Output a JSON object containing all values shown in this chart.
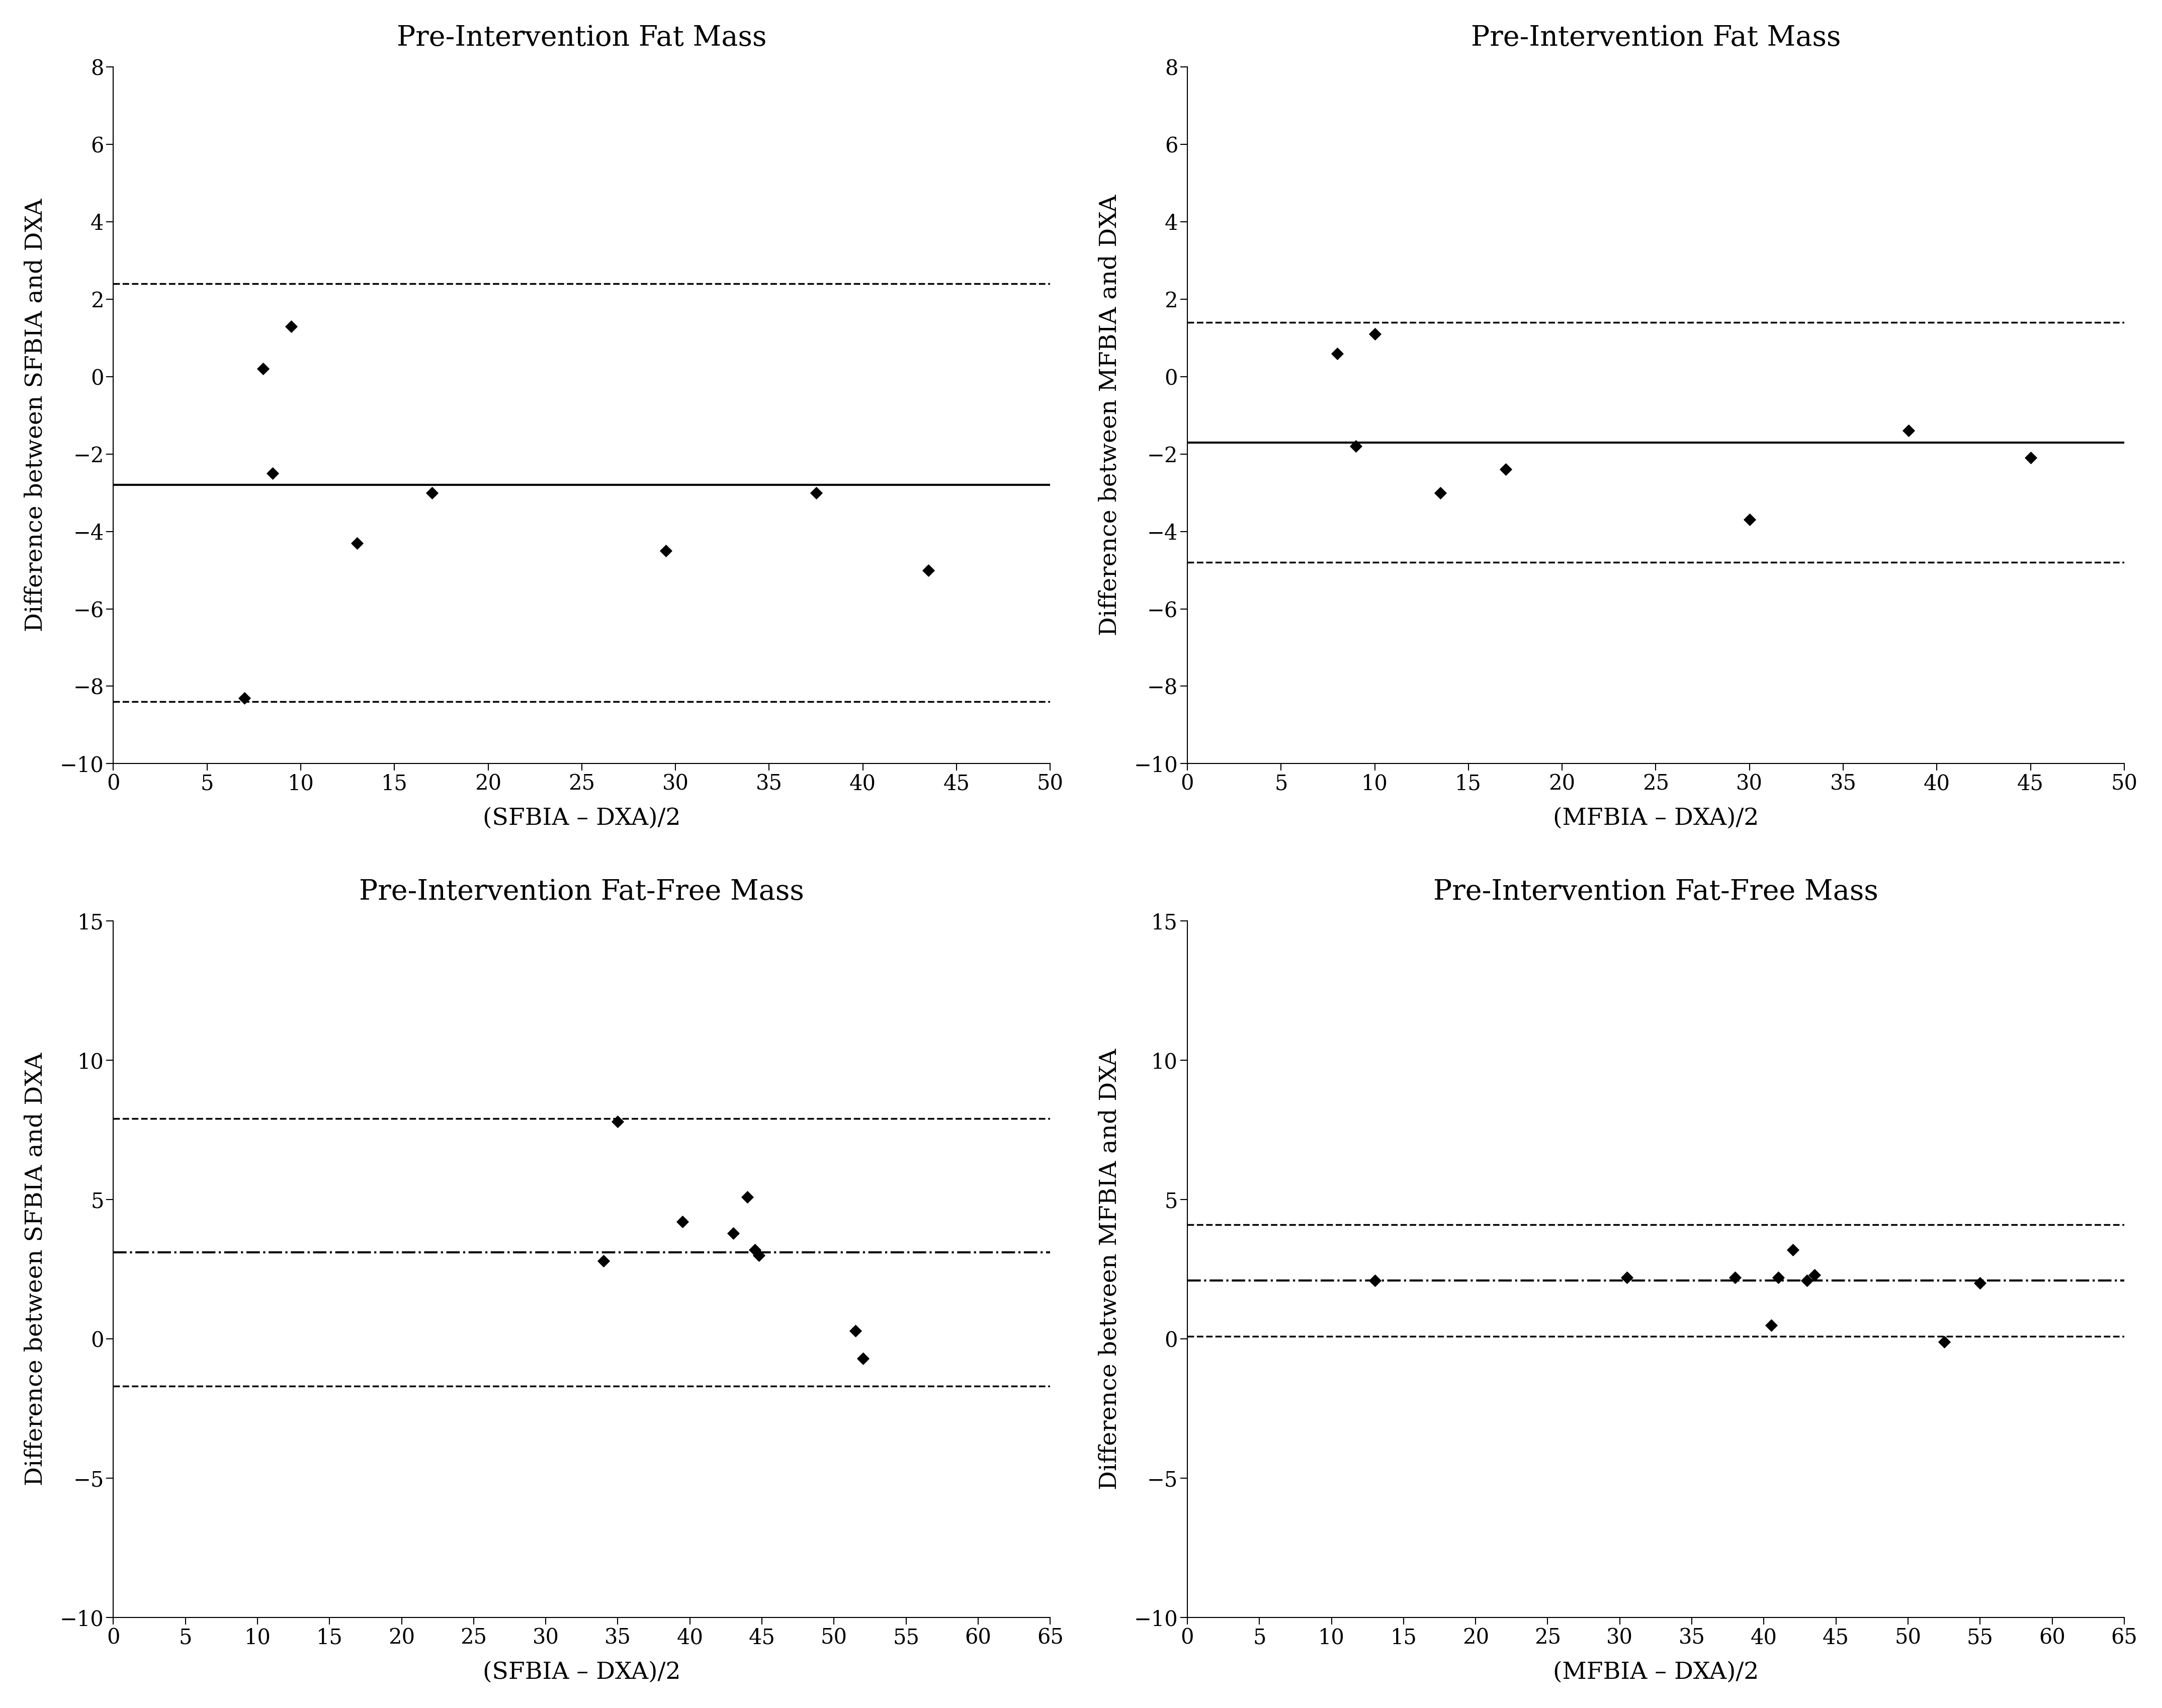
{
  "plots": [
    {
      "title": "Pre-Intervention Fat Mass",
      "xlabel": "(SFBIA – DXA)/2",
      "ylabel": "Difference between SFBIA and DXA",
      "xlim": [
        0,
        50
      ],
      "ylim": [
        -10,
        8
      ],
      "yticks": [
        -10,
        -8,
        -6,
        -4,
        -2,
        0,
        2,
        4,
        6,
        8
      ],
      "xticks": [
        0,
        5,
        10,
        15,
        20,
        25,
        30,
        35,
        40,
        45,
        50
      ],
      "data_x": [
        7.0,
        8.0,
        8.5,
        9.5,
        13.0,
        17.0,
        29.5,
        37.5,
        43.5
      ],
      "data_y": [
        -8.3,
        0.2,
        -2.5,
        1.3,
        -4.3,
        -3.0,
        -4.5,
        -3.0,
        -5.0
      ],
      "mean_y": -2.8,
      "upper_loa": 2.4,
      "lower_loa": -8.4,
      "mean_linestyle": "solid",
      "loa_linestyle": "dashed"
    },
    {
      "title": "Pre-Intervention Fat Mass",
      "xlabel": "(MFBIA – DXA)/2",
      "ylabel": "Difference between MFBIA and DXA",
      "xlim": [
        0,
        50
      ],
      "ylim": [
        -10,
        8
      ],
      "yticks": [
        -10,
        -8,
        -6,
        -4,
        -2,
        0,
        2,
        4,
        6,
        8
      ],
      "xticks": [
        0,
        5,
        10,
        15,
        20,
        25,
        30,
        35,
        40,
        45,
        50
      ],
      "data_x": [
        8.0,
        9.0,
        10.0,
        13.5,
        17.0,
        30.0,
        38.5,
        45.0
      ],
      "data_y": [
        0.6,
        -1.8,
        1.1,
        -3.0,
        -2.4,
        -3.7,
        -1.4,
        -2.1
      ],
      "mean_y": -1.7,
      "upper_loa": 1.4,
      "lower_loa": -4.8,
      "mean_linestyle": "solid",
      "loa_linestyle": "dashed"
    },
    {
      "title": "Pre-Intervention Fat-Free Mass",
      "xlabel": "(SFBIA – DXA)/2",
      "ylabel": "Difference between SFBIA and DXA",
      "xlim": [
        0,
        65
      ],
      "ylim": [
        -10,
        15
      ],
      "yticks": [
        -10,
        -5,
        0,
        5,
        10,
        15
      ],
      "xticks": [
        0,
        5,
        10,
        15,
        20,
        25,
        30,
        35,
        40,
        45,
        50,
        55,
        60,
        65
      ],
      "data_x": [
        34.0,
        35.0,
        39.5,
        43.0,
        44.0,
        44.5,
        44.8,
        51.5,
        52.0
      ],
      "data_y": [
        2.8,
        7.8,
        4.2,
        3.8,
        5.1,
        3.2,
        3.0,
        0.3,
        -0.7
      ],
      "mean_y": 3.1,
      "upper_loa": 7.9,
      "lower_loa": -1.7,
      "mean_linestyle": "dashdot",
      "loa_linestyle": "dashed"
    },
    {
      "title": "Pre-Intervention Fat-Free Mass",
      "xlabel": "(MFBIA – DXA)/2",
      "ylabel": "Difference between MFBIA and DXA",
      "xlim": [
        0,
        65
      ],
      "ylim": [
        -10,
        15
      ],
      "yticks": [
        -10,
        -5,
        0,
        5,
        10,
        15
      ],
      "xticks": [
        0,
        5,
        10,
        15,
        20,
        25,
        30,
        35,
        40,
        45,
        50,
        55,
        60,
        65
      ],
      "data_x": [
        13.0,
        30.5,
        38.0,
        40.5,
        41.0,
        42.0,
        43.0,
        43.5,
        52.5,
        55.0
      ],
      "data_y": [
        2.1,
        2.2,
        2.2,
        0.5,
        2.2,
        3.2,
        2.1,
        2.3,
        -0.1,
        2.0
      ],
      "mean_y": 2.1,
      "upper_loa": 4.1,
      "lower_loa": 0.1,
      "mean_linestyle": "dashdot",
      "loa_linestyle": "dashed"
    }
  ],
  "figure_bg": "#ffffff",
  "axes_bg": "#ffffff",
  "marker": "D",
  "marker_size": 140,
  "marker_color": "#000000",
  "line_color": "#000000",
  "mean_linewidth": 3.0,
  "loa_linewidth": 2.5,
  "title_fontsize": 40,
  "label_fontsize": 34,
  "tick_fontsize": 30
}
